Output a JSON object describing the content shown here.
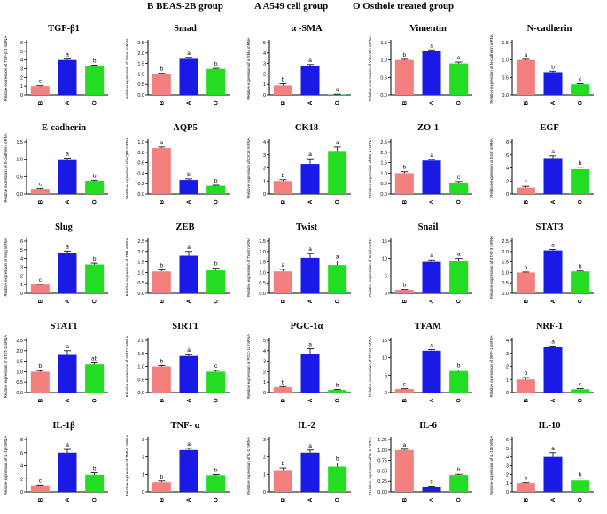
{
  "legend": {
    "b": "B  BEAS-2B group",
    "a": "A  A549 cell group",
    "o": "O  Osthole treated group"
  },
  "colors": {
    "B": "#f47f7f",
    "A": "#1a1ae6",
    "O": "#22dd22"
  },
  "chart_data": [
    {
      "type": "bar",
      "title": "TGF-β1",
      "ylabel": "Relative expression of TGF-β-1 mRNA",
      "categories": [
        "B",
        "A",
        "O"
      ],
      "values": [
        1.0,
        4.0,
        3.3
      ],
      "errors": [
        0.05,
        0.1,
        0.12
      ],
      "letters": [
        "c",
        "a",
        "b"
      ],
      "ylim": [
        0,
        6
      ]
    },
    {
      "type": "bar",
      "title": "Smad",
      "ylabel": "Relative expression of Smad mRNA",
      "categories": [
        "B",
        "A",
        "O"
      ],
      "values": [
        1.0,
        1.72,
        1.24
      ],
      "errors": [
        0.03,
        0.07,
        0.03
      ],
      "letters": [
        "b",
        "a",
        "b"
      ],
      "ylim": [
        0,
        2.5
      ],
      "yticks": [
        0,
        0.5,
        1.0,
        1.5,
        2.0,
        2.5
      ]
    },
    {
      "type": "bar",
      "title": "α -SMA",
      "ylabel": "Relative expression of α-SMA mRNA",
      "categories": [
        "B",
        "A",
        "O"
      ],
      "values": [
        0.9,
        2.8,
        0.05
      ],
      "errors": [
        0.15,
        0.1,
        0.02
      ],
      "letters": [
        "b",
        "a",
        "c"
      ],
      "ylim": [
        0,
        5
      ]
    },
    {
      "type": "bar",
      "title": "Vimentin",
      "ylabel": "Relative expression of Vimentin mRNA",
      "categories": [
        "B",
        "A",
        "O"
      ],
      "values": [
        1.0,
        1.27,
        0.9
      ],
      "errors": [
        0.02,
        0.02,
        0.04
      ],
      "letters": [
        "b",
        "a",
        "c"
      ],
      "ylim": [
        0,
        1.5
      ],
      "yticks": [
        0,
        0.5,
        1.0,
        1.5
      ]
    },
    {
      "type": "bar",
      "title": "N-cadherin",
      "ylabel": "Relative expression of N-cadherin mRNA",
      "categories": [
        "B",
        "A",
        "O"
      ],
      "values": [
        1.0,
        0.65,
        0.3
      ],
      "errors": [
        0.02,
        0.03,
        0.02
      ],
      "letters": [
        "a",
        "b",
        "c"
      ],
      "ylim": [
        0,
        1.5
      ],
      "yticks": [
        0,
        0.5,
        1.0,
        1.5
      ]
    },
    {
      "type": "bar",
      "title": "E-cadherin",
      "ylabel": "Relative expression of E-cadherin mRNA",
      "categories": [
        "B",
        "A",
        "O"
      ],
      "values": [
        0.15,
        1.0,
        0.38
      ],
      "errors": [
        0.02,
        0.03,
        0.02
      ],
      "letters": [
        "c",
        "a",
        "b"
      ],
      "ylim": [
        0,
        1.5
      ],
      "yticks": [
        0,
        0.5,
        1.0,
        1.5
      ]
    },
    {
      "type": "bar",
      "title": "AQP5",
      "ylabel": "Relative expression of AQP5 mRNA",
      "categories": [
        "B",
        "A",
        "O"
      ],
      "values": [
        0.88,
        0.27,
        0.16
      ],
      "errors": [
        0.02,
        0.02,
        0.01
      ],
      "letters": [
        "a",
        "b",
        "b"
      ],
      "ylim": [
        0,
        1.0
      ],
      "yticks": [
        0,
        0.2,
        0.4,
        0.6,
        0.8,
        1.0
      ]
    },
    {
      "type": "bar",
      "title": "CK18",
      "ylabel": "Relative expression of CK18 mRNA",
      "categories": [
        "B",
        "A",
        "O"
      ],
      "values": [
        1.0,
        2.3,
        3.3
      ],
      "errors": [
        0.1,
        0.4,
        0.3
      ],
      "letters": [
        "b",
        "a",
        "a"
      ],
      "ylim": [
        0,
        4
      ]
    },
    {
      "type": "bar",
      "title": "ZO-1",
      "ylabel": "Relative expression of ZO-1 mRNA",
      "categories": [
        "B",
        "A",
        "O"
      ],
      "values": [
        1.0,
        1.6,
        0.55
      ],
      "errors": [
        0.07,
        0.06,
        0.05
      ],
      "letters": [
        "b",
        "a",
        "c"
      ],
      "ylim": [
        0,
        2.5
      ],
      "yticks": [
        0,
        0.5,
        1.0,
        1.5,
        2.0,
        2.5
      ]
    },
    {
      "type": "bar",
      "title": "EGF",
      "ylabel": "Relative expression of EGF mRNA",
      "categories": [
        "B",
        "A",
        "O"
      ],
      "values": [
        1.0,
        5.5,
        3.8
      ],
      "errors": [
        0.2,
        0.35,
        0.3
      ],
      "letters": [
        "c",
        "a",
        "b"
      ],
      "ylim": [
        0,
        8
      ]
    },
    {
      "type": "bar",
      "title": "Slug",
      "ylabel": "Relative expression of Slug mRNA",
      "categories": [
        "B",
        "A",
        "O"
      ],
      "values": [
        1.0,
        4.6,
        3.3
      ],
      "errors": [
        0.03,
        0.25,
        0.15
      ],
      "letters": [
        "c",
        "a",
        "b"
      ],
      "ylim": [
        0,
        6
      ]
    },
    {
      "type": "bar",
      "title": "ZEB",
      "ylabel": "Relative expression of ZEB mRNA",
      "categories": [
        "B",
        "A",
        "O"
      ],
      "values": [
        1.05,
        1.8,
        1.1
      ],
      "errors": [
        0.07,
        0.2,
        0.1
      ],
      "letters": [
        "b",
        "a",
        "b"
      ],
      "ylim": [
        0,
        2.5
      ],
      "yticks": [
        0,
        0.5,
        1.0,
        1.5,
        2.0,
        2.5
      ]
    },
    {
      "type": "bar",
      "title": "Twist",
      "ylabel": "Relative expression of Twist mRNA",
      "categories": [
        "B",
        "A",
        "O"
      ],
      "values": [
        1.05,
        1.7,
        1.35
      ],
      "errors": [
        0.1,
        0.2,
        0.2
      ],
      "letters": [
        "a",
        "a",
        "a"
      ],
      "ylim": [
        0,
        2.5
      ],
      "yticks": [
        0,
        0.5,
        1.0,
        1.5,
        2.0,
        2.5
      ]
    },
    {
      "type": "bar",
      "title": "Snail",
      "ylabel": "Relative expression of Snail mRNA",
      "categories": [
        "B",
        "A",
        "O"
      ],
      "values": [
        1.0,
        9.0,
        9.2
      ],
      "errors": [
        0.1,
        0.6,
        0.8
      ],
      "letters": [
        "b",
        "a",
        "a"
      ],
      "ylim": [
        0,
        15
      ]
    },
    {
      "type": "bar",
      "title": "STAT3",
      "ylabel": "Relative expression of STAT-3 mRNA",
      "categories": [
        "B",
        "A",
        "O"
      ],
      "values": [
        1.0,
        2.05,
        1.05
      ],
      "errors": [
        0.02,
        0.05,
        0.02
      ],
      "letters": [
        "b",
        "a",
        "b"
      ],
      "ylim": [
        0,
        2.5
      ],
      "yticks": [
        0,
        0.5,
        1.0,
        1.5,
        2.0,
        2.5
      ]
    },
    {
      "type": "bar",
      "title": "STAT1",
      "ylabel": "Relative expression of STAT-1 mRNA",
      "categories": [
        "B",
        "A",
        "O"
      ],
      "values": [
        1.0,
        1.8,
        1.35
      ],
      "errors": [
        0.05,
        0.2,
        0.07
      ],
      "letters": [
        "b",
        "a",
        "ab"
      ],
      "ylim": [
        0,
        2.5
      ],
      "yticks": [
        0,
        0.5,
        1.0,
        1.5,
        2.0,
        2.5
      ]
    },
    {
      "type": "bar",
      "title": "SIRT1",
      "ylabel": "Relative expression of SIRT1 mRNA",
      "categories": [
        "B",
        "A",
        "O"
      ],
      "values": [
        1.0,
        1.4,
        0.8
      ],
      "errors": [
        0.03,
        0.05,
        0.05
      ],
      "letters": [
        "b",
        "a",
        "c"
      ],
      "ylim": [
        0,
        2.0
      ],
      "yticks": [
        0,
        0.5,
        1.0,
        1.5,
        2.0
      ]
    },
    {
      "type": "bar",
      "title": "PGC-1α",
      "ylabel": "Relative expression of PGC-1α mRNA",
      "categories": [
        "B",
        "A",
        "O"
      ],
      "values": [
        0.5,
        3.7,
        0.25
      ],
      "errors": [
        0.07,
        0.5,
        0.05
      ],
      "letters": [
        "b",
        "a",
        "b"
      ],
      "ylim": [
        0,
        5
      ]
    },
    {
      "type": "bar",
      "title": "TFAM",
      "ylabel": "Relative expression of TFAM mRNA",
      "categories": [
        "B",
        "A",
        "O"
      ],
      "values": [
        1.0,
        12.0,
        6.2
      ],
      "errors": [
        0.1,
        0.3,
        0.3
      ],
      "letters": [
        "c",
        "a",
        "b"
      ],
      "ylim": [
        0,
        15
      ]
    },
    {
      "type": "bar",
      "title": "NRF-1",
      "ylabel": "Relative expression of NRF-1 mRNA",
      "categories": [
        "B",
        "A",
        "O"
      ],
      "values": [
        1.0,
        3.5,
        0.25
      ],
      "errors": [
        0.15,
        0.07,
        0.05
      ],
      "letters": [
        "b",
        "a",
        "c"
      ],
      "ylim": [
        0,
        4
      ]
    },
    {
      "type": "bar",
      "title": "IL-1β",
      "ylabel": "Relative expression of IL-1β mRNA",
      "categories": [
        "B",
        "A",
        "O"
      ],
      "values": [
        1.0,
        6.0,
        2.6
      ],
      "errors": [
        0.05,
        0.5,
        0.3
      ],
      "letters": [
        "c",
        "a",
        "b"
      ],
      "ylim": [
        0,
        8
      ]
    },
    {
      "type": "bar",
      "title": "TNF- α",
      "ylabel": "Relative expression of TNF-α mRNA",
      "categories": [
        "B",
        "A",
        "O"
      ],
      "values": [
        0.55,
        2.4,
        0.95
      ],
      "errors": [
        0.07,
        0.1,
        0.04
      ],
      "letters": [
        "b",
        "a",
        "b"
      ],
      "ylim": [
        0,
        3
      ]
    },
    {
      "type": "bar",
      "title": "IL-2",
      "ylabel": "Relative expression of IL-2 mRNA",
      "categories": [
        "B",
        "A",
        "O"
      ],
      "values": [
        1.25,
        2.25,
        1.45
      ],
      "errors": [
        0.12,
        0.15,
        0.2
      ],
      "letters": [
        "b",
        "a",
        "b"
      ],
      "ylim": [
        0,
        3
      ]
    },
    {
      "type": "bar",
      "title": "IL-6",
      "ylabel": "Relative expression of IL-6 mRNA",
      "categories": [
        "B",
        "A",
        "O"
      ],
      "values": [
        1.0,
        0.12,
        0.4
      ],
      "errors": [
        0.02,
        0.02,
        0.02
      ],
      "letters": [
        "a",
        "c",
        "b"
      ],
      "ylim": [
        0,
        1.25
      ],
      "yticks": [
        0,
        0.25,
        0.5,
        0.75,
        1.0,
        1.25
      ]
    },
    {
      "type": "bar",
      "title": "IL-10",
      "ylabel": "Relative expression of IL-10 mRNA",
      "categories": [
        "B",
        "A",
        "O"
      ],
      "values": [
        1.0,
        4.0,
        1.3
      ],
      "errors": [
        0.05,
        0.5,
        0.2
      ],
      "letters": [
        "b",
        "a",
        "b"
      ],
      "ylim": [
        0,
        6
      ]
    }
  ]
}
